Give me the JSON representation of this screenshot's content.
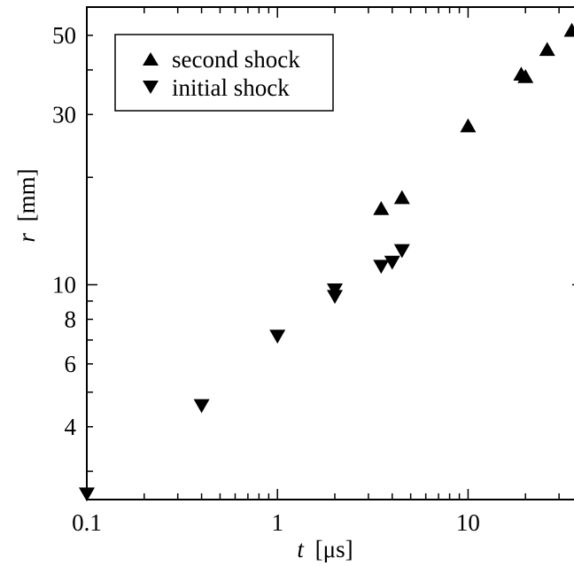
{
  "chart_data": {
    "type": "scatter",
    "title": "",
    "xlabel": {
      "var": "t",
      "unit": "[μs]"
    },
    "ylabel": {
      "var": "r",
      "unit": "[mm]"
    },
    "xscale": "log",
    "yscale": "log",
    "xlim": [
      0.1,
      40
    ],
    "ylim": [
      2.5,
      60
    ],
    "grid": false,
    "legend_position": "top-left",
    "x_ticks": [
      {
        "value": 0.1,
        "label": "0.1"
      },
      {
        "value": 1,
        "label": "1"
      },
      {
        "value": 10,
        "label": "10"
      }
    ],
    "y_ticks": [
      {
        "value": 4,
        "label": "4"
      },
      {
        "value": 6,
        "label": "6"
      },
      {
        "value": 8,
        "label": "8"
      },
      {
        "value": 10,
        "label": "10"
      },
      {
        "value": 30,
        "label": "30"
      },
      {
        "value": 50,
        "label": "50"
      }
    ],
    "series": [
      {
        "name": "second shock",
        "marker": "triangle-up",
        "color": "#000000",
        "x": [
          3.5,
          4.5,
          10,
          19,
          20,
          26,
          35
        ],
        "y": [
          16.3,
          17.5,
          27.8,
          38.8,
          38.2,
          45.5,
          51.5
        ]
      },
      {
        "name": "initial shock",
        "marker": "triangle-down",
        "color": "#000000",
        "x": [
          0.1,
          0.4,
          1.0,
          2.0,
          2.0,
          3.5,
          4.0,
          4.5
        ],
        "y": [
          2.6,
          4.6,
          7.2,
          9.7,
          9.3,
          11.3,
          11.6,
          12.5
        ]
      }
    ]
  }
}
